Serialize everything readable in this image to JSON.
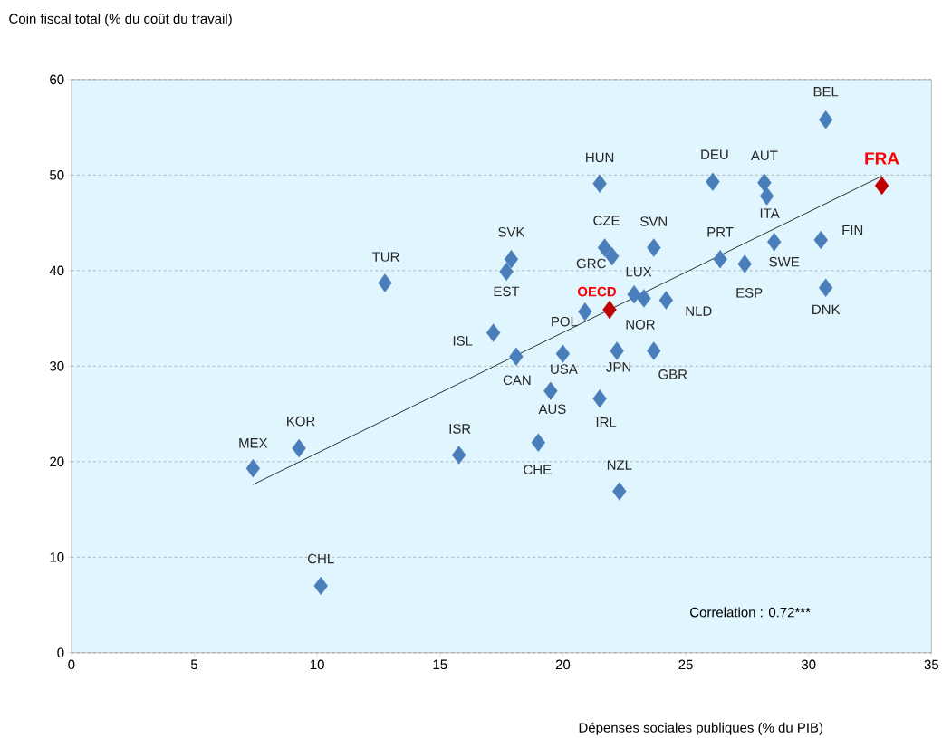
{
  "chart_data": {
    "type": "scatter",
    "xlabel": "Dépenses sociales publiques (% du PIB)",
    "ylabel": "Coin fiscal total (% du coût du travail)",
    "xlim": [
      0,
      35
    ],
    "ylim": [
      0,
      60
    ],
    "xticks": [
      0,
      5,
      10,
      15,
      20,
      25,
      30,
      35
    ],
    "yticks": [
      0,
      10,
      20,
      30,
      40,
      50,
      60
    ],
    "grid": "y",
    "marker": "diamond",
    "color": "#4a7ebb",
    "annotations": [
      "Correlation : 0.72***"
    ],
    "series": [
      {
        "name": "MEX",
        "x": [
          7.39
        ],
        "values": [
          19.3
        ]
      },
      {
        "name": "KOR",
        "x": [
          9.26
        ],
        "values": [
          21.4
        ]
      },
      {
        "name": "CHL",
        "x": [
          10.15
        ],
        "values": [
          7.0
        ]
      },
      {
        "name": "TUR",
        "x": [
          12.76
        ],
        "values": [
          38.7
        ]
      },
      {
        "name": "ISR",
        "x": [
          15.77
        ],
        "values": [
          20.7
        ]
      },
      {
        "name": "ISL",
        "x": [
          17.17
        ],
        "values": [
          33.5
        ]
      },
      {
        "name": "SVK",
        "x": [
          17.9
        ],
        "values": [
          41.2
        ]
      },
      {
        "name": "EST",
        "x": [
          17.7
        ],
        "values": [
          39.9
        ]
      },
      {
        "name": "CAN",
        "x": [
          18.1
        ],
        "values": [
          31.0
        ]
      },
      {
        "name": "USA",
        "x": [
          20.0
        ],
        "values": [
          31.3
        ]
      },
      {
        "name": "AUS",
        "x": [
          19.5
        ],
        "values": [
          27.4
        ]
      },
      {
        "name": "CHE",
        "x": [
          19.0
        ],
        "values": [
          22.0
        ]
      },
      {
        "name": "POL",
        "x": [
          20.9
        ],
        "values": [
          35.7
        ]
      },
      {
        "name": "OECD",
        "color": "#c00000",
        "x": [
          21.9
        ],
        "values": [
          35.9
        ]
      },
      {
        "name": "HUN",
        "x": [
          21.5
        ],
        "values": [
          49.1
        ]
      },
      {
        "name": "IRL",
        "x": [
          21.5
        ],
        "values": [
          26.6
        ]
      },
      {
        "name": "CZE",
        "x": [
          21.7
        ],
        "values": [
          42.4
        ]
      },
      {
        "name": "GRC",
        "x": [
          22.0
        ],
        "values": [
          41.5
        ]
      },
      {
        "name": "JPN",
        "x": [
          22.2
        ],
        "values": [
          31.6
        ]
      },
      {
        "name": "NZL",
        "x": [
          22.3
        ],
        "values": [
          16.9
        ]
      },
      {
        "name": "LUX",
        "x": [
          22.9
        ],
        "values": [
          37.5
        ]
      },
      {
        "name": "NOR",
        "x": [
          23.3
        ],
        "values": [
          37.1
        ]
      },
      {
        "name": "SVN",
        "x": [
          23.7
        ],
        "values": [
          42.4
        ]
      },
      {
        "name": "GBR",
        "x": [
          23.7
        ],
        "values": [
          31.6
        ]
      },
      {
        "name": "NLD",
        "x": [
          24.2
        ],
        "values": [
          36.9
        ]
      },
      {
        "name": "DEU",
        "x": [
          26.1
        ],
        "values": [
          49.3
        ]
      },
      {
        "name": "PRT",
        "x": [
          26.4
        ],
        "values": [
          41.2
        ]
      },
      {
        "name": "ESP",
        "x": [
          27.4
        ],
        "values": [
          40.7
        ]
      },
      {
        "name": "AUT",
        "x": [
          28.2
        ],
        "values": [
          49.2
        ]
      },
      {
        "name": "ITA",
        "x": [
          28.3
        ],
        "values": [
          47.8
        ]
      },
      {
        "name": "SWE",
        "x": [
          28.6
        ],
        "values": [
          43.0
        ]
      },
      {
        "name": "FIN",
        "x": [
          30.5
        ],
        "values": [
          43.2
        ]
      },
      {
        "name": "DNK",
        "x": [
          30.7
        ],
        "values": [
          38.2
        ]
      },
      {
        "name": "BEL",
        "x": [
          30.7
        ],
        "values": [
          55.8
        ]
      },
      {
        "name": "FRA",
        "color": "#c00000",
        "x": [
          32.98
        ],
        "values": [
          48.9
        ]
      },
      {
        "type": "line",
        "marker": "none",
        "color": "#000000",
        "x": [
          7.39,
          32.98
        ],
        "values": [
          17.6,
          49.9
        ]
      }
    ]
  }
}
